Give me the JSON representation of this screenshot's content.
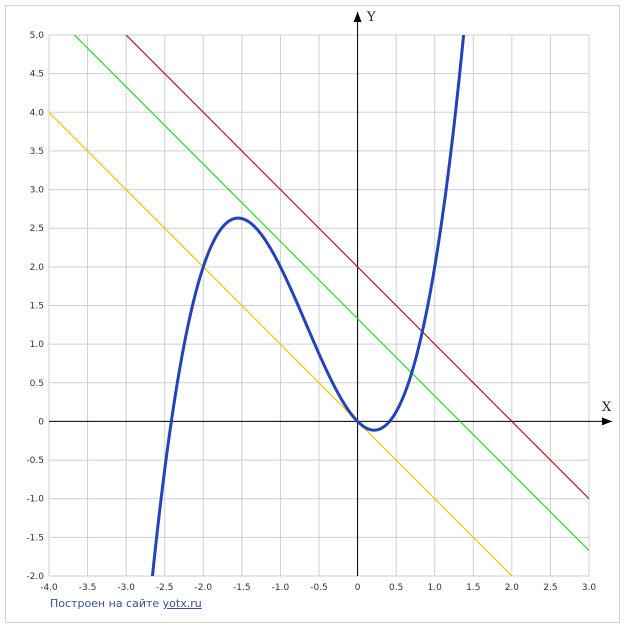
{
  "chart_data": {
    "type": "line",
    "xlabel": "X",
    "ylabel": "Y",
    "xlim": [
      -4.0,
      3.0
    ],
    "ylim": [
      -2.0,
      5.0
    ],
    "xstep": 0.5,
    "ystep": 0.5,
    "x_tick_labels": [
      "-4.0",
      "-3.5",
      "-3.0",
      "-2.5",
      "-2.0",
      "-1.5",
      "-1.0",
      "-0.5",
      "0",
      "0.5",
      "1.0",
      "1.5",
      "2.0",
      "2.5",
      "3.0"
    ],
    "y_tick_labels": [
      "-2.0",
      "-1.5",
      "-1.0",
      "-0.5",
      "0",
      "0.5",
      "1.0",
      "1.5",
      "2.0",
      "2.5",
      "3.0",
      "3.5",
      "4.0",
      "4.5",
      "5.0"
    ],
    "grid": true,
    "series": [
      {
        "kind": "cubic",
        "coeffs": [
          1,
          2,
          -1,
          0
        ],
        "color": "#2443b8",
        "width": 3
      },
      {
        "kind": "line",
        "slope": -1,
        "intercept": 2,
        "color": "#b01818",
        "width": 1.2
      },
      {
        "kind": "line",
        "slope": -1,
        "intercept": 1.33,
        "color": "#22dd22",
        "width": 1.2
      },
      {
        "kind": "line",
        "slope": -1,
        "intercept": 0,
        "color": "#f5c400",
        "width": 1.2
      }
    ]
  },
  "credit": {
    "text": "Построен на сайте ",
    "link": "yotx.ru"
  }
}
